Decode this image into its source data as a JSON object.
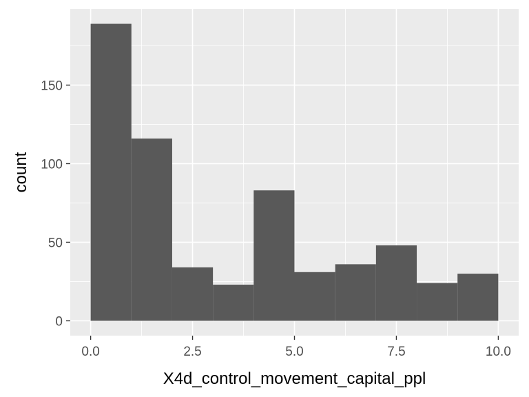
{
  "chart_data": {
    "type": "bar",
    "bins": [
      {
        "start": 0,
        "end": 1,
        "count": 189
      },
      {
        "start": 1,
        "end": 2,
        "count": 116
      },
      {
        "start": 2,
        "end": 3,
        "count": 34
      },
      {
        "start": 3,
        "end": 4,
        "count": 23
      },
      {
        "start": 4,
        "end": 5,
        "count": 83
      },
      {
        "start": 5,
        "end": 6,
        "count": 31
      },
      {
        "start": 6,
        "end": 7,
        "count": 36
      },
      {
        "start": 7,
        "end": 8,
        "count": 48
      },
      {
        "start": 8,
        "end": 9,
        "count": 24
      },
      {
        "start": 9,
        "end": 10,
        "count": 30
      }
    ],
    "xlabel": "X4d_control_movement_capital_ppl",
    "ylabel": "count",
    "xlim": [
      -0.5,
      10.5
    ],
    "ylim": [
      -9.45,
      198.45
    ],
    "x_ticks": [
      0,
      2.5,
      5,
      7.5,
      10
    ],
    "x_tick_labels": [
      "0.0",
      "2.5",
      "5.0",
      "7.5",
      "10.0"
    ],
    "x_minor_ticks": [
      1.25,
      3.75,
      6.25,
      8.75
    ],
    "y_ticks": [
      0,
      50,
      100,
      150
    ],
    "y_tick_labels": [
      "0",
      "50",
      "100",
      "150"
    ],
    "y_minor_ticks": [
      25,
      75,
      125,
      175
    ],
    "grid": true,
    "colors": {
      "bar": "#595959",
      "panel": "#ebebeb",
      "grid": "#ffffff",
      "tick": "#333333",
      "tick_text": "#4d4d4d"
    }
  }
}
